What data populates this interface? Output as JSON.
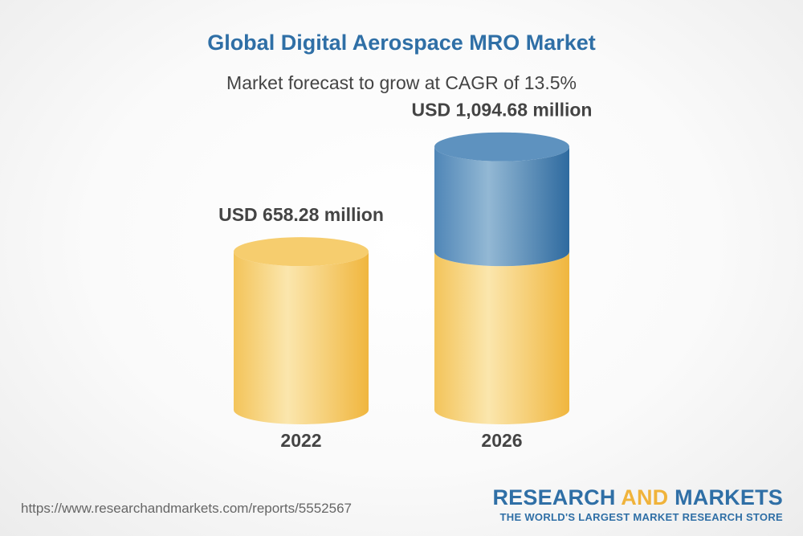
{
  "chart_data": {
    "type": "bar",
    "title": "Global Digital Aerospace MRO Market",
    "subtitle": "Market forecast to grow at CAGR of 13.5%",
    "categories": [
      "2022",
      "2026"
    ],
    "values": [
      658.28,
      1094.68
    ],
    "value_labels": [
      "USD 658.28 million",
      "USD 1,094.68 million"
    ],
    "unit": "USD million",
    "ylim": [
      0,
      1100
    ],
    "grid": false,
    "legend": "none"
  },
  "colors": {
    "base": "#f3c45a",
    "base_highlight": "#fbe6ad",
    "growth": "#4f86b7",
    "growth_highlight": "#93b8d4",
    "title": "#2f6fa6",
    "brand_accent": "#f0b33b"
  },
  "footer": {
    "source_url": "https://www.researchandmarkets.com/reports/5552567",
    "brand_part1": "RESEARCH ",
    "brand_part2": "AND",
    "brand_part3": " MARKETS",
    "tagline": "THE WORLD'S LARGEST MARKET RESEARCH STORE"
  }
}
